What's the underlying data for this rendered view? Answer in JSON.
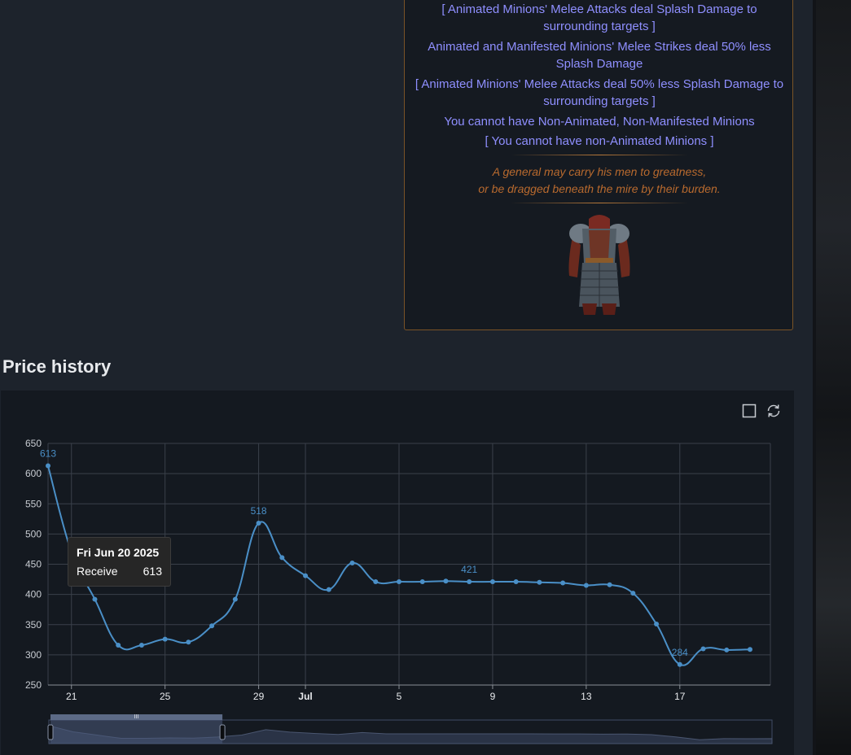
{
  "item": {
    "mods": [
      "[ Animated Minions' Melee Attacks deal Splash Damage to surrounding targets ]",
      "Animated and Manifested Minions' Melee Strikes deal 50% less Splash Damage",
      "[ Animated Minions' Melee Attacks deal 50% less Splash Damage to surrounding targets ]",
      "You cannot have Non-Animated, Non-Manifested Minions",
      "[ You cannot have non-Animated Minions ]"
    ],
    "mod_lines": [
      [
        "[ Animated Minions' Melee Attacks deal Splash Damage to",
        "surrounding targets ]"
      ],
      [
        "Animated and Manifested Minions' Melee Strikes deal 50% less",
        "Splash Damage"
      ],
      [
        "[ Animated Minions' Melee Attacks deal 50% less Splash Damage to",
        "surrounding targets ]"
      ],
      [
        "You cannot have Non-Animated, Non-Manifested Minions"
      ],
      [
        "[ You cannot have non-Animated Minions ]"
      ]
    ],
    "flavour": {
      "line1": "A general may carry his men to greatness,",
      "line2": "or be dragged beneath the mire by their burden."
    },
    "image_icon": "body-armour-icon",
    "colors": {
      "mod_text": "#8f8fff",
      "flavour_text": "#b96a2e",
      "border": "#7a5326"
    }
  },
  "section": {
    "title": "Price history"
  },
  "toolbar": {
    "icons": [
      "rectangle-select-icon",
      "restore-icon"
    ]
  },
  "tooltip": {
    "date": "Fri Jun 20 2025",
    "series_label": "Receive",
    "value": "613"
  },
  "chart_data": {
    "type": "line",
    "x": [
      "2025-06-20",
      "2025-06-21",
      "2025-06-22",
      "2025-06-23",
      "2025-06-24",
      "2025-06-25",
      "2025-06-26",
      "2025-06-27",
      "2025-06-28",
      "2025-06-29",
      "2025-06-30",
      "2025-07-01",
      "2025-07-02",
      "2025-07-03",
      "2025-07-04",
      "2025-07-05",
      "2025-07-06",
      "2025-07-07",
      "2025-07-08",
      "2025-07-09",
      "2025-07-10",
      "2025-07-11",
      "2025-07-12",
      "2025-07-13",
      "2025-07-14",
      "2025-07-15",
      "2025-07-16",
      "2025-07-17",
      "2025-07-18",
      "2025-07-19",
      "2025-07-20"
    ],
    "series": [
      {
        "name": "Receive",
        "values": [
          613,
          470,
          392,
          316,
          316,
          326,
          321,
          348,
          392,
          518,
          461,
          431,
          408,
          452,
          421,
          421,
          421,
          422,
          421,
          421,
          421,
          420,
          419,
          415,
          416,
          402,
          351,
          284,
          310,
          308,
          309
        ]
      }
    ],
    "ylim": [
      250,
      650
    ],
    "yticks": [
      250,
      300,
      350,
      400,
      450,
      500,
      550,
      600,
      650
    ],
    "xticks": [
      {
        "date": "2025-06-21",
        "label": "21"
      },
      {
        "date": "2025-06-25",
        "label": "25"
      },
      {
        "date": "2025-06-29",
        "label": "29"
      },
      {
        "date": "2025-07-01",
        "label": "Jul"
      },
      {
        "date": "2025-07-05",
        "label": "5"
      },
      {
        "date": "2025-07-09",
        "label": "9"
      },
      {
        "date": "2025-07-13",
        "label": "13"
      },
      {
        "date": "2025-07-17",
        "label": "17"
      }
    ],
    "x_range": [
      "2025-06-20",
      "2025-07-20"
    ],
    "point_labels": [
      {
        "date": "2025-06-20",
        "text": "613"
      },
      {
        "date": "2025-06-29",
        "text": "518"
      },
      {
        "date": "2025-07-08",
        "text": "421"
      },
      {
        "date": "2025-07-17",
        "text": "284"
      }
    ],
    "grid": true,
    "line_color": "#4a8fc7",
    "data_zoom": {
      "start": 0,
      "end": 0.24
    }
  }
}
